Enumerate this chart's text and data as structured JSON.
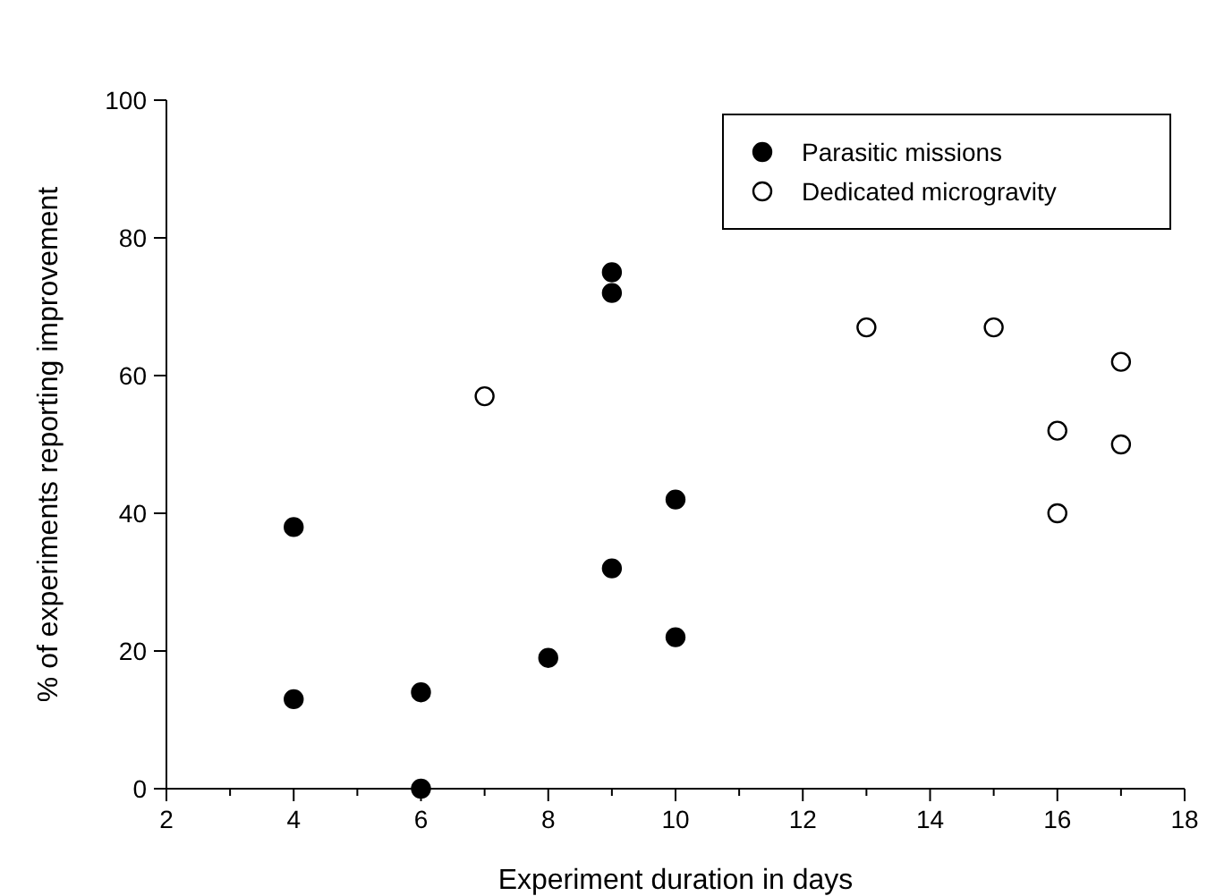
{
  "chart_data": {
    "type": "scatter",
    "xlabel": "Experiment duration in days",
    "ylabel": "% of experiments reporting improvement",
    "xlim": [
      2,
      18
    ],
    "xticks": [
      2,
      {
        "value": 3,
        "label": null
      },
      4,
      {
        "value": 5,
        "label": null
      },
      6,
      {
        "value": 7,
        "label": null
      },
      8,
      {
        "value": 9,
        "label": null
      },
      10,
      {
        "value": 11,
        "label": null
      },
      12,
      {
        "value": 13,
        "label": null
      },
      14,
      {
        "value": 15,
        "label": null
      },
      16,
      {
        "value": 17,
        "label": null
      },
      18
    ],
    "ylim": [
      0,
      100
    ],
    "yticks": [
      0,
      20,
      40,
      60,
      80,
      100
    ],
    "grid": false,
    "legend": "top right",
    "marker": "circle",
    "series": [
      {
        "name": "Parasitic missions",
        "color": "#000000",
        "x": [
          4,
          4,
          6,
          6,
          8,
          9,
          9,
          9,
          10,
          10
        ],
        "values": [
          38,
          13,
          14,
          0,
          19,
          75,
          72,
          32,
          42,
          22
        ]
      },
      {
        "name": "Dedicated microgravity",
        "color": "#ffffff",
        "x": [
          7,
          13,
          15,
          16,
          16,
          17,
          17
        ],
        "values": [
          57,
          67,
          67,
          52,
          40,
          62,
          50
        ]
      }
    ]
  }
}
